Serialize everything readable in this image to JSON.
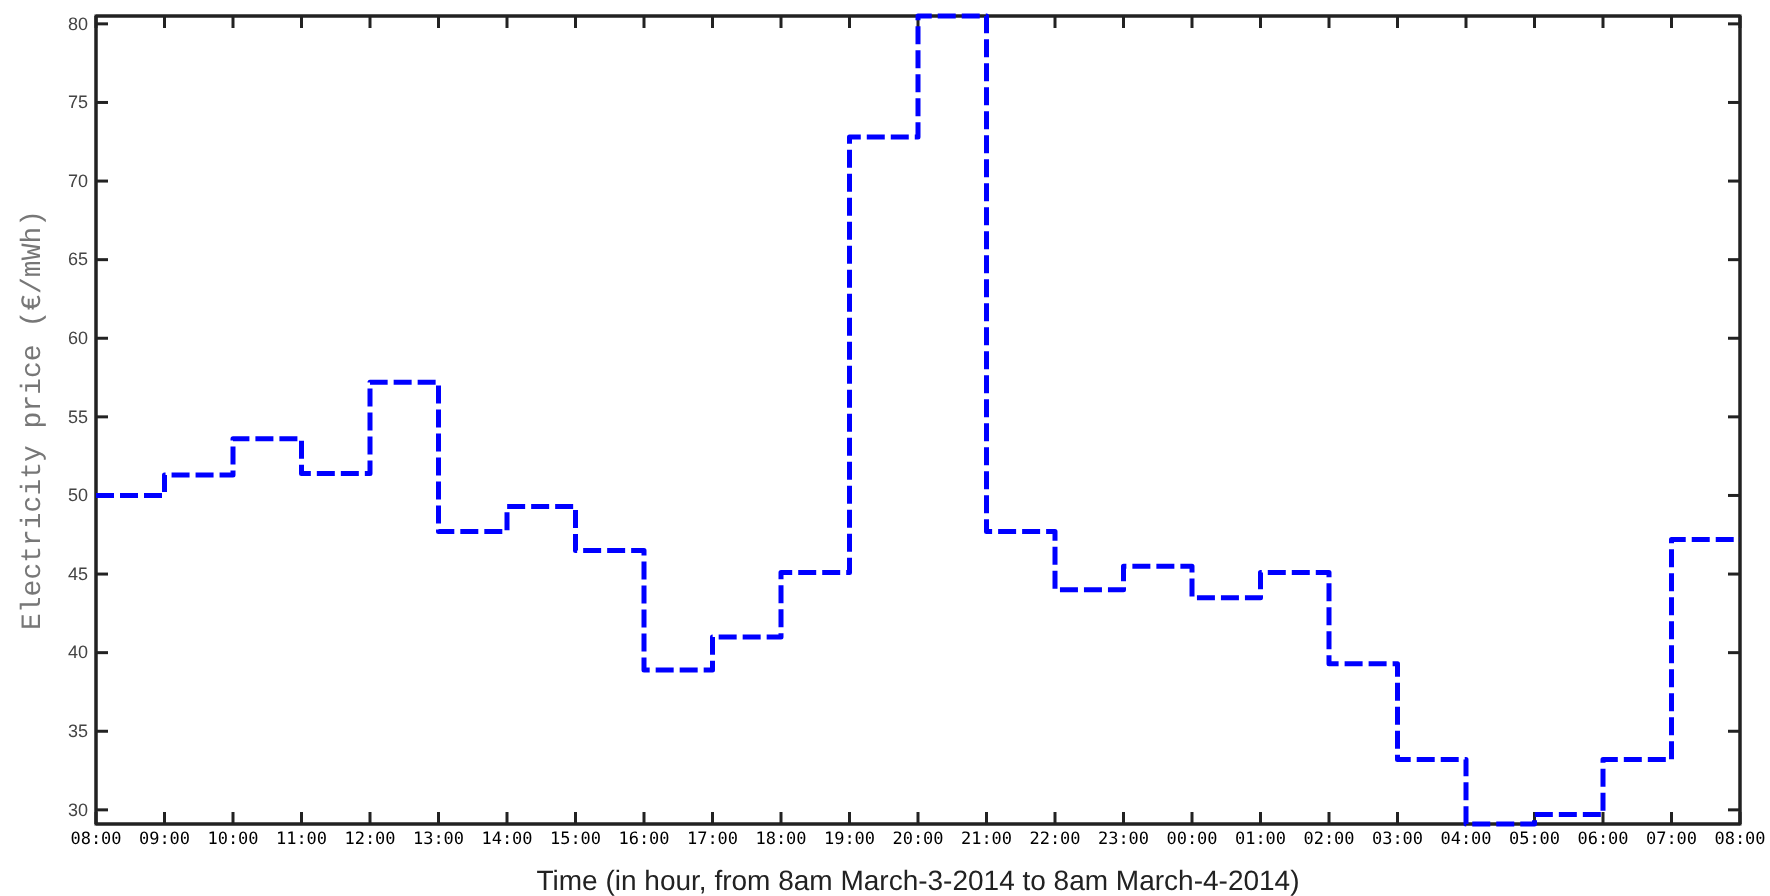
{
  "chart_data": {
    "type": "step",
    "xlabel": "Time (in hour, from 8am March-3-2014 to 8am March-4-2014)",
    "ylabel": "Electricity price (€/mWh)",
    "x": [
      "2014-03-03T08:00",
      "2014-03-03T09:00",
      "2014-03-03T10:00",
      "2014-03-03T11:00",
      "2014-03-03T12:00",
      "2014-03-03T13:00",
      "2014-03-03T14:00",
      "2014-03-03T15:00",
      "2014-03-03T16:00",
      "2014-03-03T17:00",
      "2014-03-03T18:00",
      "2014-03-03T19:00",
      "2014-03-03T20:00",
      "2014-03-03T21:00",
      "2014-03-03T22:00",
      "2014-03-03T23:00",
      "2014-03-04T00:00",
      "2014-03-04T01:00",
      "2014-03-04T02:00",
      "2014-03-04T03:00",
      "2014-03-04T04:00",
      "2014-03-04T05:00",
      "2014-03-04T06:00",
      "2014-03-04T07:00",
      "2014-03-04T08:00"
    ],
    "series": [
      {
        "color": "#0000ff",
        "values": [
          50.0,
          51.3,
          53.6,
          51.4,
          57.2,
          47.7,
          49.3,
          46.5,
          38.9,
          41.0,
          45.1,
          72.8,
          80.5,
          47.7,
          44.0,
          45.5,
          43.5,
          45.1,
          39.3,
          33.2,
          29.1,
          29.7,
          33.2,
          47.2,
          47.2
        ]
      }
    ],
    "xlim": [
      "2014-03-03T08:00",
      "2014-03-04T08:00"
    ],
    "ylim": [
      29.1,
      80.5
    ],
    "xticks": [
      {
        "value": "2014-03-03T08:00",
        "label": "08:00"
      },
      {
        "value": "2014-03-03T09:00",
        "label": "09:00"
      },
      {
        "value": "2014-03-03T10:00",
        "label": "10:00"
      },
      {
        "value": "2014-03-03T11:00",
        "label": "11:00"
      },
      {
        "value": "2014-03-03T12:00",
        "label": "12:00"
      },
      {
        "value": "2014-03-03T13:00",
        "label": "13:00"
      },
      {
        "value": "2014-03-03T14:00",
        "label": "14:00"
      },
      {
        "value": "2014-03-03T15:00",
        "label": "15:00"
      },
      {
        "value": "2014-03-03T16:00",
        "label": "16:00"
      },
      {
        "value": "2014-03-03T17:00",
        "label": "17:00"
      },
      {
        "value": "2014-03-03T18:00",
        "label": "18:00"
      },
      {
        "value": "2014-03-03T19:00",
        "label": "19:00"
      },
      {
        "value": "2014-03-03T20:00",
        "label": "20:00"
      },
      {
        "value": "2014-03-03T21:00",
        "label": "21:00"
      },
      {
        "value": "2014-03-03T22:00",
        "label": "22:00"
      },
      {
        "value": "2014-03-03T23:00",
        "label": "23:00"
      },
      {
        "value": "2014-03-04T00:00",
        "label": "00:00"
      },
      {
        "value": "2014-03-04T01:00",
        "label": "01:00"
      },
      {
        "value": "2014-03-04T02:00",
        "label": "02:00"
      },
      {
        "value": "2014-03-04T03:00",
        "label": "03:00"
      },
      {
        "value": "2014-03-04T04:00",
        "label": "04:00"
      },
      {
        "value": "2014-03-04T05:00",
        "label": "05:00"
      },
      {
        "value": "2014-03-04T06:00",
        "label": "06:00"
      },
      {
        "value": "2014-03-04T07:00",
        "label": "07:00"
      },
      {
        "value": "2014-03-04T08:00",
        "label": "08:00"
      }
    ],
    "yticks": [
      30,
      35,
      40,
      45,
      50,
      55,
      60,
      65,
      70,
      75,
      80
    ],
    "grid": false,
    "line_style": "dashed"
  }
}
